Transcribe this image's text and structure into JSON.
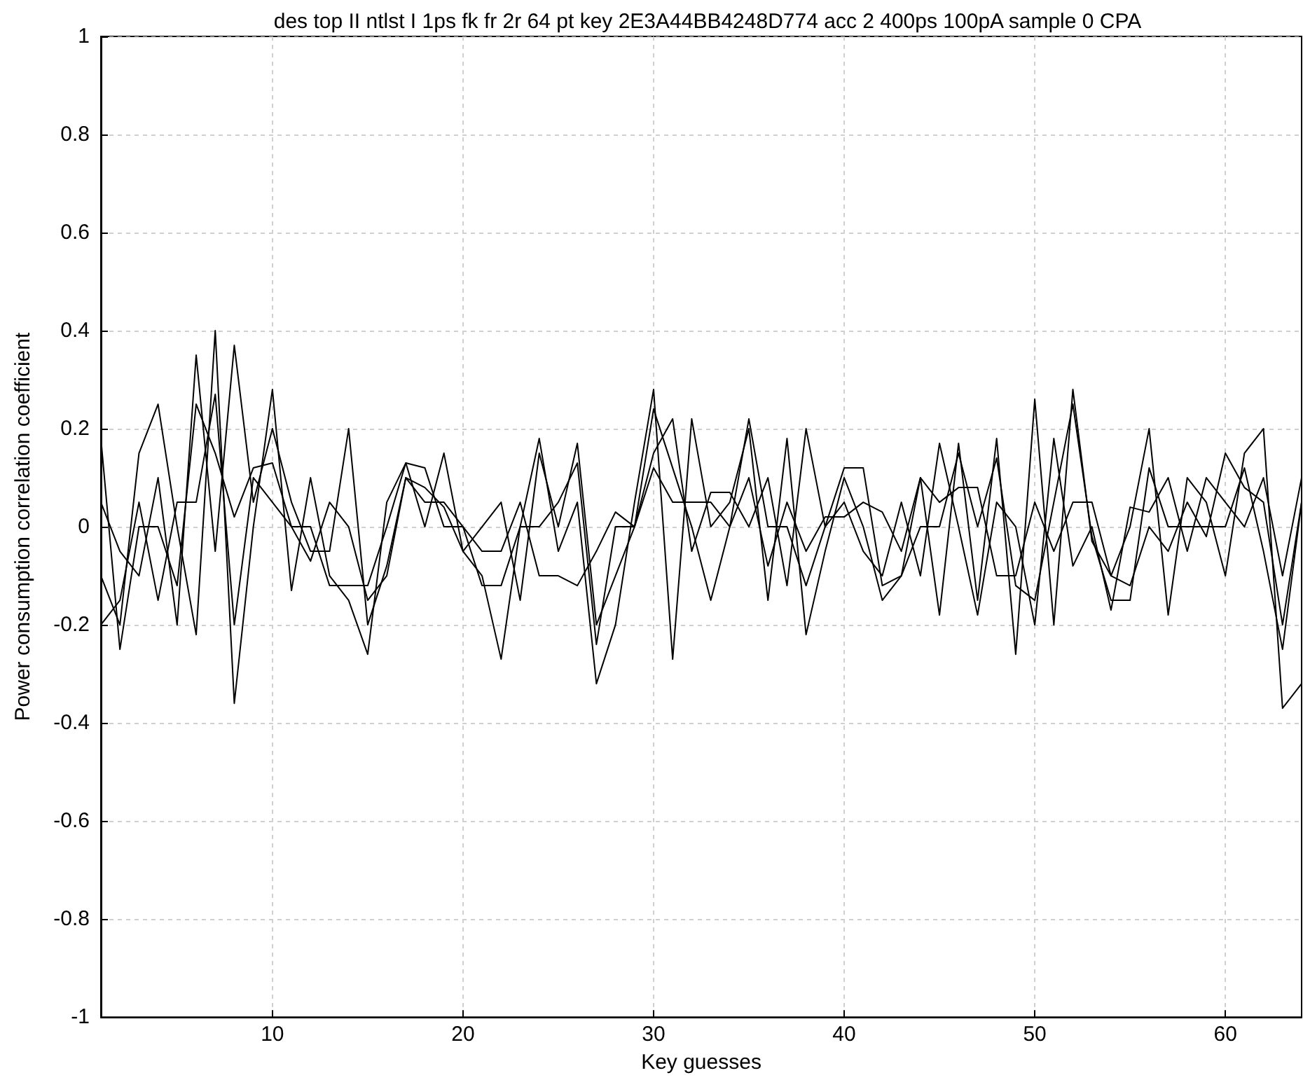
{
  "chart_data": {
    "type": "line",
    "title": "des top II ntlst I 1ps fk fr 2r 64 pt key 2E3A44BB4248D774 acc 2 400ps 100pA sample 0 CPA",
    "xlabel": "Key guesses",
    "ylabel": "Power consumption correlation coefficient",
    "x": [
      1,
      2,
      3,
      4,
      5,
      6,
      7,
      8,
      9,
      10,
      11,
      12,
      13,
      14,
      15,
      16,
      17,
      18,
      19,
      20,
      21,
      22,
      23,
      24,
      25,
      26,
      27,
      28,
      29,
      30,
      31,
      32,
      33,
      34,
      35,
      36,
      37,
      38,
      39,
      40,
      41,
      42,
      43,
      44,
      45,
      46,
      47,
      48,
      49,
      50,
      51,
      52,
      53,
      54,
      55,
      56,
      57,
      58,
      59,
      60,
      61,
      62,
      63,
      64
    ],
    "series": [
      {
        "color": "#000000",
        "values": [
          0.18,
          -0.25,
          0.0,
          0.0,
          -0.12,
          0.25,
          0.15,
          0.02,
          0.12,
          0.13,
          0.0,
          0.0,
          -0.12,
          -0.12,
          -0.12,
          0.0,
          0.13,
          0.12,
          0.0,
          0.0,
          -0.12,
          -0.12,
          0.0,
          0.0,
          0.05,
          0.13,
          -0.24,
          0.0,
          0.0,
          0.24,
          0.12,
          0.0,
          -0.15,
          0.0,
          0.22,
          0.0,
          0.0,
          -0.12,
          0.0,
          0.12,
          0.12,
          -0.12,
          -0.1,
          0.0,
          0.0,
          0.15,
          0.0,
          0.14,
          -0.12,
          -0.15,
          0.05,
          0.25,
          -0.02,
          -0.15,
          -0.15,
          0.12,
          0.0,
          0.0,
          0.0,
          0.0,
          0.12,
          -0.05,
          -0.25,
          0.05
        ]
      },
      {
        "color": "#000000",
        "values": [
          -0.1,
          -0.2,
          0.15,
          0.25,
          0.0,
          -0.22,
          0.4,
          -0.36,
          0.0,
          0.28,
          -0.13,
          0.1,
          -0.1,
          -0.15,
          -0.26,
          0.05,
          0.13,
          0.0,
          0.15,
          -0.05,
          -0.1,
          -0.27,
          0.0,
          0.18,
          -0.05,
          0.05,
          -0.32,
          -0.2,
          0.05,
          0.28,
          -0.27,
          0.22,
          0.0,
          0.05,
          0.2,
          -0.15,
          0.18,
          -0.22,
          -0.05,
          0.1,
          0.0,
          -0.15,
          -0.1,
          0.1,
          -0.18,
          0.17,
          -0.15,
          0.18,
          -0.26,
          0.26,
          -0.2,
          0.28,
          -0.03,
          -0.1,
          0.0,
          0.2,
          -0.18,
          0.1,
          0.05,
          -0.1,
          0.15,
          0.2,
          -0.37,
          -0.32
        ]
      },
      {
        "color": "#000000",
        "values": [
          0.05,
          -0.05,
          -0.1,
          0.1,
          -0.2,
          0.35,
          -0.05,
          0.37,
          0.05,
          0.2,
          0.05,
          -0.05,
          -0.05,
          0.2,
          -0.2,
          -0.08,
          0.1,
          0.08,
          0.04,
          -0.05,
          0.0,
          0.05,
          -0.15,
          0.15,
          0.0,
          0.17,
          -0.2,
          -0.1,
          0.0,
          0.15,
          0.22,
          -0.05,
          0.07,
          0.07,
          0.0,
          0.1,
          -0.12,
          0.2,
          0.0,
          0.05,
          -0.05,
          -0.1,
          0.05,
          -0.1,
          0.17,
          0.0,
          -0.18,
          0.05,
          0.0,
          -0.2,
          0.18,
          -0.08,
          0.0,
          -0.17,
          0.04,
          0.03,
          0.1,
          -0.05,
          0.1,
          0.05,
          0.0,
          0.1,
          -0.1,
          0.1
        ]
      },
      {
        "color": "#000000",
        "values": [
          -0.2,
          -0.15,
          0.05,
          -0.15,
          0.05,
          0.05,
          0.27,
          -0.2,
          0.1,
          0.05,
          0.0,
          -0.07,
          0.05,
          0.0,
          -0.15,
          -0.1,
          0.1,
          0.05,
          0.05,
          0.0,
          -0.05,
          -0.05,
          0.05,
          -0.1,
          -0.1,
          -0.12,
          -0.05,
          0.03,
          0.0,
          0.12,
          0.05,
          0.05,
          0.05,
          0.0,
          0.1,
          -0.08,
          0.05,
          -0.05,
          0.02,
          0.02,
          0.05,
          0.03,
          -0.05,
          0.1,
          0.05,
          0.08,
          0.08,
          -0.1,
          -0.1,
          0.05,
          -0.05,
          0.05,
          0.05,
          -0.1,
          -0.12,
          0.0,
          -0.05,
          0.05,
          -0.02,
          0.15,
          0.08,
          0.05,
          -0.2,
          0.05
        ]
      }
    ],
    "xlim": [
      1,
      64
    ],
    "xticks": [
      10,
      20,
      30,
      40,
      50,
      60
    ],
    "ylim": [
      -1,
      1
    ],
    "yticks": [
      -1,
      -0.8,
      -0.6,
      -0.4,
      -0.2,
      0,
      0.2,
      0.4,
      0.6,
      0.8,
      1
    ],
    "grid": true,
    "marker": "none",
    "line_style": "solid"
  }
}
